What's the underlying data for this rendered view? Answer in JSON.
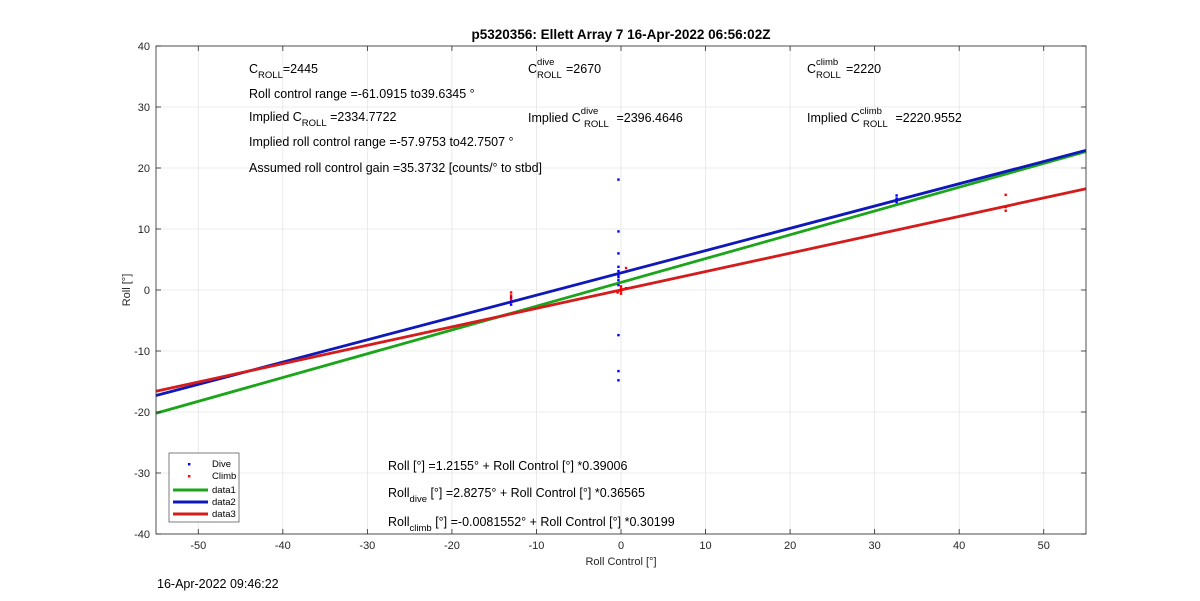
{
  "chart_data": {
    "type": "scatter",
    "title": "p5320356: Ellett Array 7 16-Apr-2022 06:56:02Z",
    "xlabel": "Roll Control [°]",
    "ylabel": "Roll [°]",
    "xlim": [
      -55,
      55
    ],
    "ylim": [
      -40,
      40
    ],
    "xticks": [
      -50,
      -40,
      -30,
      -20,
      -10,
      0,
      10,
      20,
      30,
      40,
      50
    ],
    "yticks": [
      -40,
      -30,
      -20,
      -10,
      0,
      10,
      20,
      30,
      40
    ],
    "grid": true,
    "legend_position": "bottom-left",
    "series": [
      {
        "name": "Dive",
        "kind": "points",
        "color": "#0000ff",
        "points": [
          [
            -13,
            -1.2
          ],
          [
            -13,
            -1.9
          ],
          [
            -13,
            -2.4
          ],
          [
            -0.3,
            18.1
          ],
          [
            -0.3,
            9.6
          ],
          [
            -0.3,
            6
          ],
          [
            -0.3,
            3.8
          ],
          [
            -0.3,
            3.1
          ],
          [
            -0.3,
            2.5
          ],
          [
            -0.3,
            2.1
          ],
          [
            -0.3,
            1.6
          ],
          [
            -0.3,
            0.8
          ],
          [
            -0.3,
            -7.4
          ],
          [
            -0.3,
            -13.3
          ],
          [
            -0.3,
            -14.8
          ],
          [
            32.6,
            14.4
          ],
          [
            32.6,
            15
          ],
          [
            32.6,
            15.5
          ]
        ]
      },
      {
        "name": "Climb",
        "kind": "points",
        "color": "#ff0000",
        "points": [
          [
            -13,
            -0.4
          ],
          [
            -13,
            -0.9
          ],
          [
            -13,
            -1.5
          ],
          [
            0,
            0.6
          ],
          [
            0,
            0.2
          ],
          [
            0,
            -0.2
          ],
          [
            0,
            -0.6
          ],
          [
            0.6,
            3.6
          ],
          [
            0.6,
            0.3
          ],
          [
            -0.4,
            -0.4
          ],
          [
            45.5,
            15.6
          ],
          [
            45.5,
            13.6
          ],
          [
            45.5,
            13
          ]
        ]
      },
      {
        "name": "data1",
        "kind": "line",
        "color": "#1aa51a",
        "points": [
          [
            -55,
            -20.2
          ],
          [
            55,
            22.7
          ]
        ]
      },
      {
        "name": "data2",
        "kind": "line",
        "color": "#0f18b8",
        "points": [
          [
            -55,
            -17.3
          ],
          [
            55,
            22.9
          ]
        ]
      },
      {
        "name": "data3",
        "kind": "line",
        "color": "#d41c1c",
        "points": [
          [
            -55,
            -16.6
          ],
          [
            55,
            16.6
          ]
        ]
      }
    ],
    "annotations": {
      "c_roll": {
        "main": "C",
        "sub": "ROLL",
        "rest": "=2445"
      },
      "c_roll_dive": {
        "main": "C",
        "sup": "dive",
        "sub": "ROLL",
        "rest": "=2670"
      },
      "c_roll_climb": {
        "main": "C",
        "sup": "climb",
        "sub": "ROLL",
        "rest": "=2220"
      },
      "roll_range": "Roll control range =-61.0915 to39.6345 °",
      "implied_c_roll": {
        "pre": "Implied C",
        "sub": "ROLL",
        "rest": " =2334.7722"
      },
      "implied_c_roll_dive": {
        "pre": "Implied C",
        "sup": "dive",
        "sub": "ROLL",
        "rest": " =2396.4646"
      },
      "implied_c_roll_climb": {
        "pre": "Implied C",
        "sup": "climb",
        "sub": "ROLL",
        "rest": " =2220.9552"
      },
      "implied_range": "Implied roll control range =-57.9753 to42.7507 °",
      "gain": "Assumed roll control gain =35.3732 [counts/° to stbd]",
      "fit_all": {
        "pre": "Roll",
        "rest": " [°] =1.2155° + Roll Control [°] *0.39006"
      },
      "fit_dive": {
        "pre": "Roll",
        "sub": "dive",
        "rest": " [°] =2.8275° + Roll Control [°] *0.36565"
      },
      "fit_climb": {
        "pre": "Roll",
        "sub": "climb",
        "rest": " [°] =-0.0081552° + Roll Control [°] *0.30199"
      }
    }
  },
  "footer": {
    "timestamp": "16-Apr-2022 09:46:22"
  }
}
